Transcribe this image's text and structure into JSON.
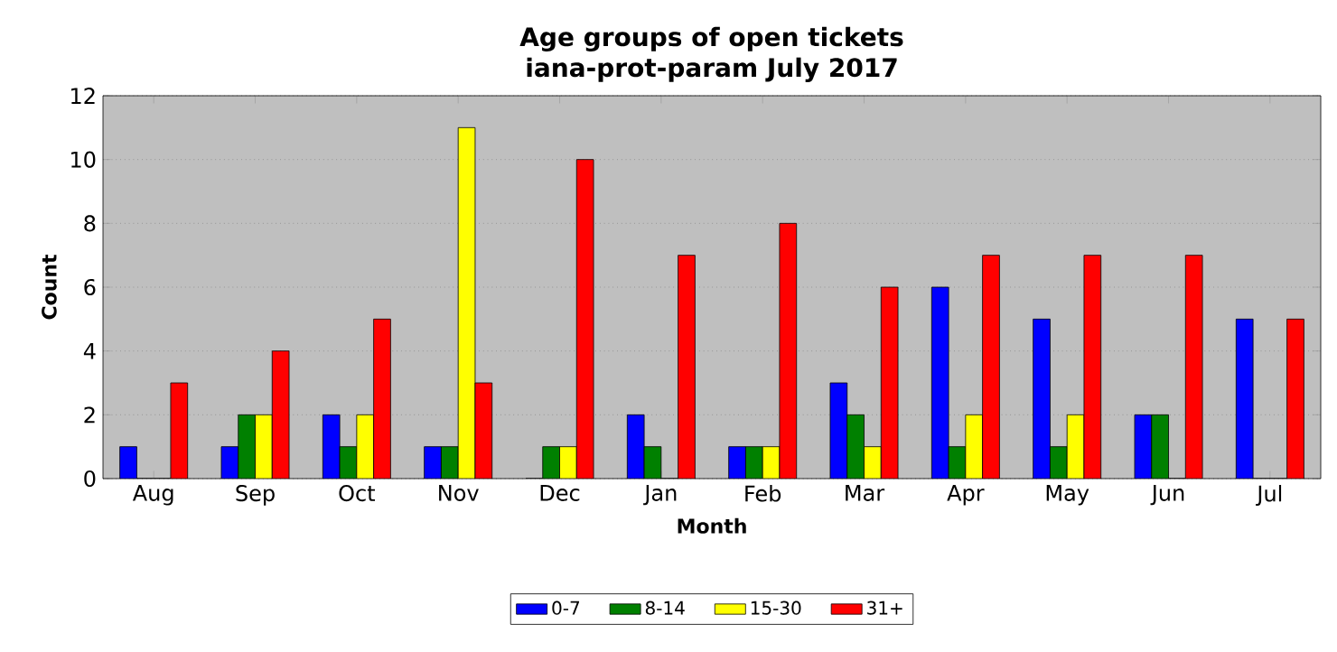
{
  "chart_data": {
    "type": "bar",
    "title": "Age groups of open tickets",
    "subtitle": "iana-prot-param July 2017",
    "xlabel": "Month",
    "ylabel": "Count",
    "categories": [
      "Aug",
      "Sep",
      "Oct",
      "Nov",
      "Dec",
      "Jan",
      "Feb",
      "Mar",
      "Apr",
      "May",
      "Jun",
      "Jul"
    ],
    "series": [
      {
        "name": "0-7",
        "color": "#0000ff",
        "values": [
          1,
          1,
          2,
          1,
          0,
          2,
          1,
          3,
          6,
          5,
          2,
          5
        ]
      },
      {
        "name": "8-14",
        "color": "#008000",
        "values": [
          0,
          2,
          1,
          1,
          1,
          1,
          1,
          2,
          1,
          1,
          2,
          0
        ]
      },
      {
        "name": "15-30",
        "color": "#ffff00",
        "values": [
          0,
          2,
          2,
          11,
          1,
          0,
          1,
          1,
          2,
          2,
          0,
          0
        ]
      },
      {
        "name": "31+",
        "color": "#ff0000",
        "values": [
          3,
          4,
          5,
          3,
          10,
          7,
          8,
          6,
          7,
          7,
          7,
          5
        ]
      }
    ],
    "ylim": [
      0,
      12
    ],
    "yticks": [
      0,
      2,
      4,
      6,
      8,
      10,
      12
    ],
    "grid": "y",
    "legend": "bottom"
  }
}
